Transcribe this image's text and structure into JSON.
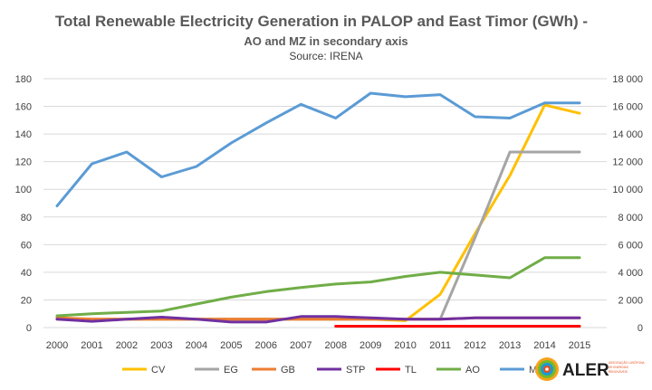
{
  "chart_data": {
    "type": "line",
    "title": "Total Renewable Electricity Generation in PALOP and East Timor (GWh) -",
    "subtitle": "AO and MZ in secondary axis",
    "source": "Source: IRENA",
    "x": [
      "2000",
      "2001",
      "2002",
      "2003",
      "2004",
      "2005",
      "2006",
      "2007",
      "2008",
      "2009",
      "2010",
      "2011",
      "2012",
      "2013",
      "2014",
      "2015"
    ],
    "y_left": {
      "min": 0,
      "max": 180,
      "step": 20,
      "tick_labels": [
        "0",
        "20",
        "40",
        "60",
        "80",
        "100",
        "120",
        "140",
        "160",
        "180"
      ]
    },
    "y_right": {
      "min": 0,
      "max": 18000,
      "step": 2000,
      "tick_labels": [
        "0",
        "2 000",
        "4 000",
        "6 000",
        "8 000",
        "10 000",
        "12 000",
        "14 000",
        "16 000",
        "18 000"
      ]
    },
    "grid": true,
    "legend_position": "bottom",
    "series": [
      {
        "name": "CV",
        "color": "#ffc000",
        "axis": "left",
        "values": [
          7,
          6,
          6,
          6,
          6,
          6,
          6,
          6,
          6,
          6,
          5,
          24,
          68,
          110,
          161,
          155
        ]
      },
      {
        "name": "EG",
        "color": "#a5a5a5",
        "axis": "left",
        "values": [
          6,
          6,
          6,
          6,
          6,
          6,
          6,
          6,
          6,
          6,
          6,
          6,
          65,
          127,
          127,
          127
        ]
      },
      {
        "name": "GB",
        "color": "#ed7d31",
        "axis": "left",
        "values": [
          7,
          6,
          6,
          6,
          6,
          6,
          6,
          6,
          6,
          6,
          6,
          6,
          7,
          7,
          7,
          7
        ]
      },
      {
        "name": "STP",
        "color": "#7030a0",
        "axis": "left",
        "values": [
          6,
          4.5,
          6,
          7.5,
          6,
          4,
          4,
          8,
          8,
          7,
          6,
          6,
          7,
          7,
          7,
          7
        ]
      },
      {
        "name": "TL",
        "color": "#ff0000",
        "axis": "left",
        "values": [
          null,
          null,
          null,
          null,
          null,
          null,
          null,
          null,
          1,
          1,
          1,
          1,
          1,
          1,
          1,
          1
        ]
      },
      {
        "name": "AO",
        "color": "#70ad47",
        "axis": "right",
        "values": [
          850,
          1000,
          1100,
          1200,
          1700,
          2200,
          2600,
          2900,
          3150,
          3300,
          3700,
          4000,
          3800,
          3600,
          5050,
          5050
        ]
      },
      {
        "name": "MZ",
        "color": "#5b9bd5",
        "axis": "right",
        "values": [
          8800,
          11850,
          12700,
          10900,
          11650,
          13350,
          14800,
          16150,
          15150,
          16950,
          16700,
          16850,
          15250,
          15150,
          16250,
          16250
        ]
      }
    ]
  },
  "logo": {
    "name": "ALER",
    "tagline": "ASSOCIAÇÃO LUSÓFONA DE ENERGIAS RENOVÁVEIS",
    "colors": [
      "#f7a21b",
      "#e84e1b",
      "#76b82a",
      "#1a9ad6"
    ]
  }
}
